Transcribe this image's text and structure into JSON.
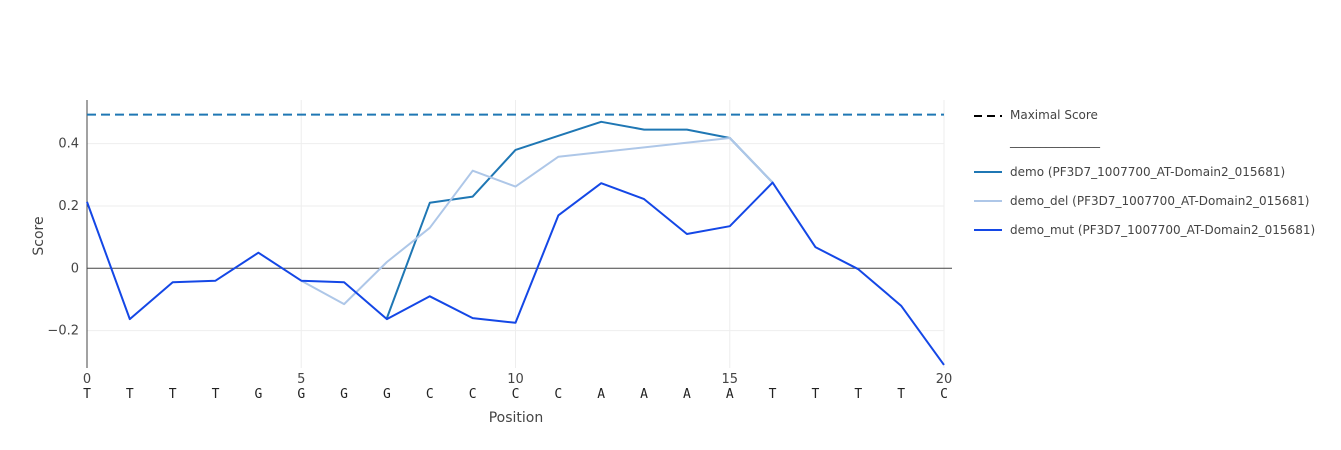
{
  "chart_data": {
    "type": "line",
    "xlabel": "Position",
    "ylabel": "Score",
    "xlim": [
      0,
      20
    ],
    "ylim": [
      -0.32,
      0.54
    ],
    "x_ticks": [
      0,
      5,
      10,
      15,
      20
    ],
    "y_ticks": [
      -0.2,
      0,
      0.2,
      0.4
    ],
    "y_tick_labels": [
      "−0.2",
      "0",
      "0.2",
      "0.4"
    ],
    "sequence": [
      "T",
      "T",
      "T",
      "T",
      "G",
      "G",
      "G",
      "G",
      "C",
      "C",
      "C",
      "C",
      "A",
      "A",
      "A",
      "A",
      "T",
      "T",
      "T",
      "T",
      "C"
    ],
    "grid": true,
    "legend_position": "right",
    "maximal_score": {
      "name": "Maximal Score",
      "value": 0.493,
      "dash": "dashed",
      "legend_color": "#000000",
      "line_color": "#1f77b4"
    },
    "legend_separator": "_______________",
    "series": [
      {
        "name": "demo (PF3D7_1007700_AT-Domain2_015681)",
        "color": "#1f77b4",
        "x": [
          7,
          8,
          9,
          10,
          11,
          12,
          13,
          14,
          15,
          16
        ],
        "values": [
          -0.16,
          0.21,
          0.23,
          0.38,
          0.425,
          0.47,
          0.445,
          0.445,
          0.418,
          0.275
        ]
      },
      {
        "name": "demo_del (PF3D7_1007700_AT-Domain2_015681)",
        "color": "#aec7e8",
        "x": [
          5,
          6,
          7,
          8,
          9,
          10,
          11,
          15,
          16
        ],
        "values": [
          -0.04,
          -0.115,
          0.02,
          0.13,
          0.313,
          0.262,
          0.358,
          0.418,
          0.275
        ]
      },
      {
        "name": "demo_mut (PF3D7_1007700_AT-Domain2_015681)",
        "color": "#1447e6",
        "x": [
          0,
          1,
          2,
          3,
          4,
          5,
          6,
          7,
          8,
          9,
          10,
          11,
          12,
          13,
          14,
          15,
          16,
          17,
          18,
          19,
          20
        ],
        "values": [
          0.213,
          -0.163,
          -0.045,
          -0.04,
          0.05,
          -0.04,
          -0.045,
          -0.163,
          -0.09,
          -0.16,
          -0.175,
          0.17,
          0.273,
          0.222,
          0.11,
          0.135,
          0.275,
          0.068,
          -0.003,
          -0.12,
          -0.31
        ]
      }
    ]
  }
}
